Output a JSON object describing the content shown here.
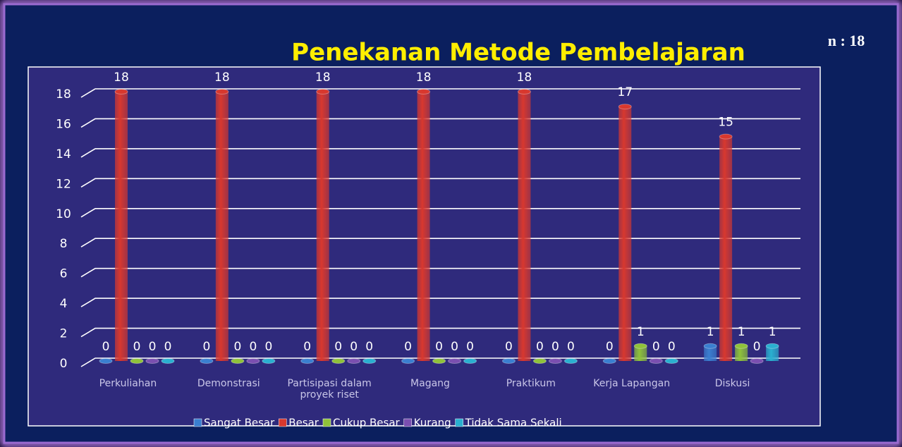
{
  "chart_data": {
    "type": "bar",
    "title": "Penekanan Metode Pembelajaran",
    "annotation": "n : 18",
    "categories": [
      "Perkuliahan",
      "Demonstrasi",
      "Partisipasi dalam proyek riset",
      "Magang",
      "Praktikum",
      "Kerja Lapangan",
      "Diskusi"
    ],
    "series": [
      {
        "name": "Sangat Besar",
        "color": "#3a7fd0",
        "values": [
          0,
          0,
          0,
          0,
          0,
          0,
          1
        ]
      },
      {
        "name": "Besar",
        "color": "#d8382e",
        "values": [
          18,
          18,
          18,
          18,
          18,
          17,
          15
        ]
      },
      {
        "name": "Cukup Besar",
        "color": "#8fc23a",
        "values": [
          0,
          0,
          0,
          0,
          0,
          1,
          1
        ]
      },
      {
        "name": "Kurang",
        "color": "#7a4fb0",
        "values": [
          0,
          0,
          0,
          0,
          0,
          0,
          0
        ]
      },
      {
        "name": "Tidak Sama Sekali",
        "color": "#2ab0d0",
        "values": [
          0,
          0,
          0,
          0,
          0,
          0,
          1
        ]
      }
    ],
    "ylim": [
      0,
      18
    ],
    "yticks": [
      0,
      2,
      4,
      6,
      8,
      10,
      12,
      14,
      16,
      18
    ],
    "grid": true,
    "legend": "bottom"
  }
}
